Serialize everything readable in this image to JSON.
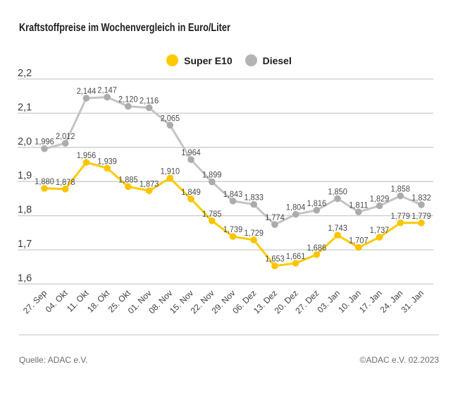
{
  "title": "Kraftstoffpreise im Wochenvergleich in Euro/Liter",
  "legend": {
    "items": [
      {
        "label": "Super E10",
        "color": "#fdca00"
      },
      {
        "label": "Diesel",
        "color": "#b3b3b3"
      }
    ]
  },
  "footer": {
    "source_left": "Quelle: ADAC e.V.",
    "source_right": "©ADAC e.V. 02.2023"
  },
  "chart_data": {
    "type": "line",
    "title": "Kraftstoffpreise im Wochenvergleich in Euro/Liter",
    "categories": [
      "27. Sep",
      "04. Okt",
      "11. Okt",
      "18. Okt",
      "25. Okt",
      "01. Nov",
      "08. Nov",
      "15. Nov",
      "22. Nov",
      "29. Nov",
      "06. Dez",
      "13. Dez",
      "20. Dez",
      "27. Dez",
      "03. Jan",
      "10. Jan",
      "17. Jan",
      "24. Jan",
      "31. Jan"
    ],
    "series": [
      {
        "name": "Super E10",
        "line_color": "#fdca00",
        "marker_color": "#fac400",
        "values": [
          1.88,
          1.878,
          1.956,
          1.939,
          1.885,
          1.873,
          1.91,
          1.849,
          1.785,
          1.739,
          1.729,
          1.653,
          1.661,
          1.686,
          1.743,
          1.707,
          1.737,
          1.779,
          1.779
        ]
      },
      {
        "name": "Diesel",
        "line_color": "#c4c4c4",
        "marker_color": "#acacac",
        "values": [
          1.996,
          2.012,
          2.144,
          2.147,
          2.12,
          2.116,
          2.065,
          1.964,
          1.899,
          1.843,
          1.833,
          1.774,
          1.804,
          1.816,
          1.85,
          1.811,
          1.829,
          1.858,
          1.832
        ]
      }
    ],
    "ylim": [
      1.6,
      2.2
    ],
    "ytick_step": 0.1,
    "grid": true,
    "legend_position": "top",
    "value_labels": true,
    "decimal_separator": ","
  }
}
